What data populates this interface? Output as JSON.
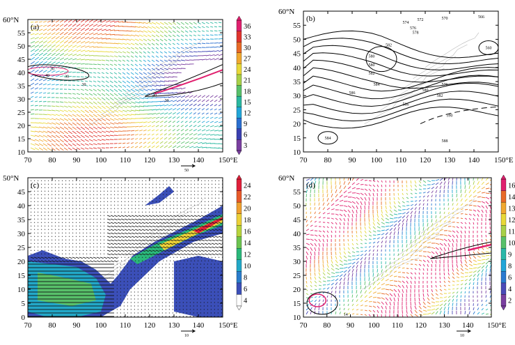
{
  "chart_data": [
    {
      "type": "vector-field-contour",
      "label": "(a)",
      "x_ticks": [
        "70",
        "80",
        "90",
        "100",
        "110",
        "120",
        "130",
        "140",
        "150°E"
      ],
      "y_ticks": [
        "10",
        "15",
        "20",
        "25",
        "30",
        "35",
        "40",
        "45",
        "50",
        "55",
        "60°N"
      ],
      "xlim": [
        70,
        150
      ],
      "ylim": [
        10,
        60
      ],
      "colorbar": {
        "ticks": [
          "3",
          "6",
          "9",
          "12",
          "15",
          "18",
          "21",
          "24",
          "27",
          "30",
          "33",
          "36"
        ],
        "colors": [
          "#7a3fa0",
          "#3a3fb0",
          "#2a6fd0",
          "#22a6d8",
          "#2ab8a0",
          "#58c06a",
          "#a8d048",
          "#e8d838",
          "#f0a830",
          "#e86a28",
          "#e0342e",
          "#e0206e"
        ]
      },
      "contour_labels": [
        "30",
        "40",
        "30",
        "30",
        "40",
        "30"
      ],
      "reference_vector": {
        "label": "50"
      }
    },
    {
      "type": "contour",
      "label": "(b)",
      "x_ticks": [
        "70",
        "80",
        "90",
        "100",
        "110",
        "120",
        "130",
        "140",
        "150°E"
      ],
      "y_ticks": [
        "10",
        "15",
        "20",
        "25",
        "30",
        "35",
        "40",
        "45",
        "50",
        "55",
        "60°N"
      ],
      "xlim": [
        70,
        150
      ],
      "ylim": [
        10,
        60
      ],
      "contour_labels": [
        "572",
        "570",
        "566",
        "574",
        "576",
        "578",
        "582",
        "580",
        "560",
        "580",
        "582",
        "584",
        "576",
        "586",
        "580",
        "582",
        "586",
        "590",
        "584",
        "588"
      ]
    },
    {
      "type": "vector-field-filled-contour",
      "label": "(c)",
      "x_ticks": [
        "70",
        "80",
        "90",
        "100",
        "110",
        "120",
        "130",
        "140",
        "150°E"
      ],
      "y_ticks": [
        "0",
        "5",
        "10",
        "15",
        "20",
        "25",
        "30",
        "35",
        "40",
        "45",
        "50°N"
      ],
      "xlim": [
        70,
        150
      ],
      "ylim": [
        0,
        50
      ],
      "colorbar": {
        "ticks": [
          "4",
          "6",
          "8",
          "10",
          "12",
          "14",
          "16",
          "18",
          "20",
          "22",
          "24"
        ],
        "colors": [
          "#ffffff",
          "#3b4fb8",
          "#2a7ccc",
          "#22a8c8",
          "#2ab87a",
          "#6cc450",
          "#b8d43c",
          "#ecd038",
          "#f0a030",
          "#e85a2a",
          "#e0203a"
        ]
      },
      "reference_vector": {
        "label": "10"
      }
    },
    {
      "type": "vector-field-contour",
      "label": "(d)",
      "x_ticks": [
        "70",
        "80",
        "90",
        "100",
        "110",
        "120",
        "130",
        "140",
        "150°E"
      ],
      "y_ticks": [
        "10",
        "15",
        "20",
        "25",
        "30",
        "35",
        "40",
        "45",
        "50",
        "55",
        "60°N"
      ],
      "xlim": [
        70,
        150
      ],
      "ylim": [
        10,
        60
      ],
      "colorbar": {
        "ticks": [
          "2",
          "4",
          "6",
          "8",
          "9",
          "10",
          "11",
          "12",
          "13",
          "14",
          "16"
        ],
        "colors": [
          "#7a3fa0",
          "#4a4ab8",
          "#2a7ad0",
          "#22a6d8",
          "#2ab8a8",
          "#58c06a",
          "#a8d048",
          "#e8d838",
          "#f0a830",
          "#e86a28",
          "#e0206e"
        ]
      },
      "contour_labels": [
        "14"
      ],
      "reference_vector": {
        "label": "10"
      }
    }
  ]
}
